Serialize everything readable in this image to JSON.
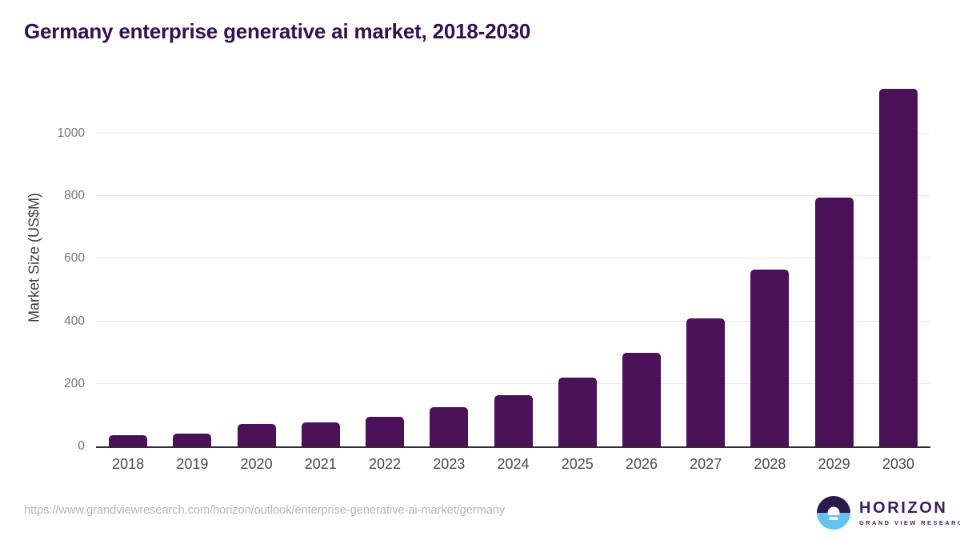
{
  "title": "Germany enterprise generative ai market, 2018-2030",
  "source_url": "https://www.grandviewresearch.com/horizon/outlook/enterprise-generative-ai-market/germany",
  "logo": {
    "name": "HORIZON",
    "subtitle": "GRAND VIEW RESEARCH"
  },
  "colors": {
    "bar": "#4a1158",
    "title_text": "#321150",
    "logo_dark": "#2b1b4d",
    "logo_blue": "#63c3f0",
    "gridline": "#e8e8e8",
    "axis_line": "#2f2f2f"
  },
  "chart_data": {
    "type": "bar",
    "title": "Germany enterprise generative ai market, 2018-2030",
    "categories": [
      "2018",
      "2019",
      "2020",
      "2021",
      "2022",
      "2023",
      "2024",
      "2025",
      "2026",
      "2027",
      "2028",
      "2029",
      "2030"
    ],
    "values": [
      36,
      42,
      71,
      76,
      95,
      126,
      164,
      221,
      298,
      410,
      564,
      795,
      1144
    ],
    "xlabel": "",
    "ylabel": "Market Size (US$M)",
    "yticks": [
      0,
      200,
      400,
      600,
      800,
      1000
    ],
    "ylim": [
      0,
      1170
    ],
    "grid": true,
    "legend": false,
    "bar_color": "#4a1158"
  }
}
